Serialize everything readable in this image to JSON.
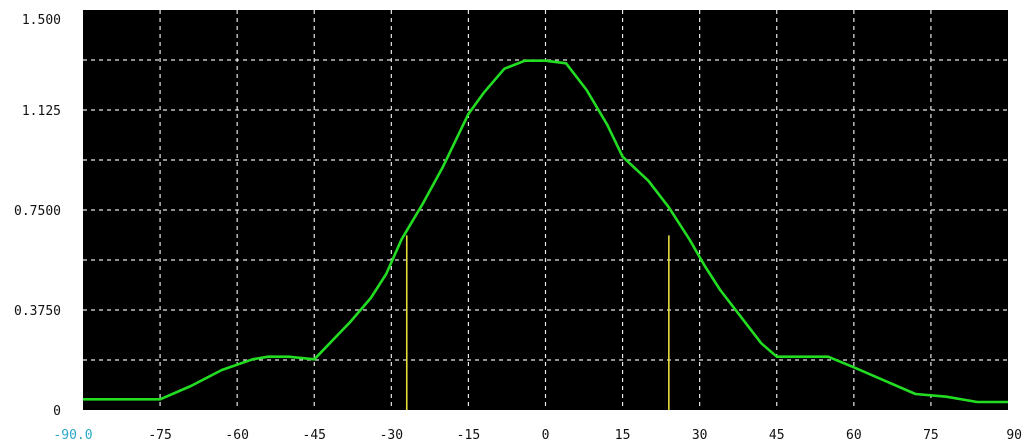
{
  "colors": {
    "background": "#000000",
    "grid": "#e8e8e8",
    "trace": "#22dd22",
    "marker": "#e6dc3c",
    "x_start_label": "#2aa7c8",
    "tick_text": "#111111"
  },
  "chart_data": {
    "type": "line",
    "title": "",
    "xlabel": "",
    "ylabel": "",
    "xlim": [
      -90,
      90
    ],
    "ylim": [
      0,
      1.5
    ],
    "grid": true,
    "legend": "none",
    "x_ticks": [
      -90,
      -75,
      -60,
      -45,
      -30,
      -15,
      0,
      15,
      30,
      45,
      60,
      75,
      90
    ],
    "x_tick_labels": [
      "-90.0",
      "-75",
      "-60",
      "-45",
      "-30",
      "-15",
      "0",
      "15",
      "30",
      "45",
      "60",
      "75",
      "90"
    ],
    "y_ticks": [
      0,
      0.375,
      0.75,
      1.125,
      1.5
    ],
    "y_tick_labels": [
      "0",
      "0.3750",
      "0.7500",
      "1.125",
      "1.500"
    ],
    "series": [
      {
        "x": [
          -90,
          -75,
          -69,
          -63,
          -57,
          -54,
          -50,
          -45,
          -42,
          -38,
          -34,
          -31,
          -28,
          -24,
          -20,
          -15,
          -12,
          -8,
          -4,
          0,
          4,
          8,
          12,
          15,
          20,
          24,
          28,
          31,
          34,
          38,
          42,
          45,
          50,
          55,
          60,
          66,
          72,
          78,
          84,
          90
        ],
        "y": [
          0.04,
          0.04,
          0.09,
          0.15,
          0.19,
          0.2,
          0.2,
          0.19,
          0.25,
          0.33,
          0.42,
          0.51,
          0.64,
          0.77,
          0.91,
          1.11,
          1.19,
          1.28,
          1.31,
          1.31,
          1.3,
          1.2,
          1.07,
          0.95,
          0.86,
          0.76,
          0.64,
          0.54,
          0.45,
          0.35,
          0.25,
          0.2,
          0.2,
          0.2,
          0.16,
          0.11,
          0.06,
          0.05,
          0.03,
          0.03
        ]
      }
    ],
    "markers": [
      {
        "x": -27,
        "y": 0.655
      },
      {
        "x": 24,
        "y": 0.655
      }
    ]
  }
}
